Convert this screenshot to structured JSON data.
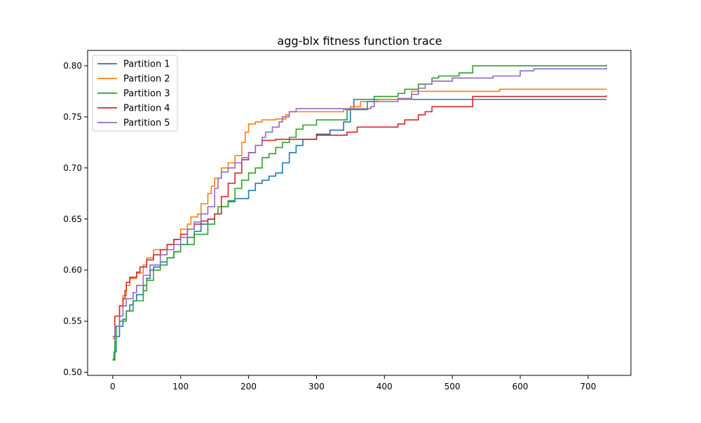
{
  "chart_data": {
    "type": "line",
    "title": "agg-blx fitness function trace",
    "xlabel": "",
    "ylabel": "",
    "xlim": [
      -37,
      763
    ],
    "ylim": [
      0.497,
      0.815
    ],
    "xticks": [
      0,
      100,
      200,
      300,
      400,
      500,
      600,
      700
    ],
    "yticks": [
      0.5,
      0.55,
      0.6,
      0.65,
      0.7,
      0.75,
      0.8
    ],
    "xtick_labels": [
      "0",
      "100",
      "200",
      "300",
      "400",
      "500",
      "600",
      "700"
    ],
    "ytick_labels": [
      "0.50",
      "0.55",
      "0.60",
      "0.65",
      "0.70",
      "0.75",
      "0.80"
    ],
    "grid": false,
    "legend_position": "top-left",
    "step": true,
    "series": [
      {
        "name": "Partition 1",
        "color": "#1f77b4",
        "points": [
          [
            0,
            0.513
          ],
          [
            2,
            0.52
          ],
          [
            5,
            0.535
          ],
          [
            10,
            0.545
          ],
          [
            15,
            0.552
          ],
          [
            20,
            0.56
          ],
          [
            25,
            0.566
          ],
          [
            30,
            0.57
          ],
          [
            35,
            0.576
          ],
          [
            45,
            0.585
          ],
          [
            50,
            0.592
          ],
          [
            55,
            0.6
          ],
          [
            60,
            0.603
          ],
          [
            70,
            0.608
          ],
          [
            80,
            0.612
          ],
          [
            90,
            0.618
          ],
          [
            100,
            0.625
          ],
          [
            110,
            0.632
          ],
          [
            120,
            0.638
          ],
          [
            130,
            0.645
          ],
          [
            140,
            0.65
          ],
          [
            150,
            0.655
          ],
          [
            160,
            0.662
          ],
          [
            170,
            0.667
          ],
          [
            180,
            0.67
          ],
          [
            200,
            0.678
          ],
          [
            210,
            0.685
          ],
          [
            220,
            0.688
          ],
          [
            230,
            0.692
          ],
          [
            240,
            0.695
          ],
          [
            250,
            0.705
          ],
          [
            260,
            0.715
          ],
          [
            270,
            0.722
          ],
          [
            280,
            0.728
          ],
          [
            300,
            0.733
          ],
          [
            320,
            0.737
          ],
          [
            340,
            0.745
          ],
          [
            350,
            0.758
          ],
          [
            355,
            0.767
          ],
          [
            400,
            0.767
          ],
          [
            727,
            0.767
          ]
        ]
      },
      {
        "name": "Partition 2",
        "color": "#ff7f0e",
        "points": [
          [
            0,
            0.515
          ],
          [
            3,
            0.545
          ],
          [
            10,
            0.565
          ],
          [
            15,
            0.575
          ],
          [
            20,
            0.585
          ],
          [
            25,
            0.592
          ],
          [
            35,
            0.597
          ],
          [
            45,
            0.605
          ],
          [
            50,
            0.612
          ],
          [
            60,
            0.62
          ],
          [
            80,
            0.625
          ],
          [
            90,
            0.63
          ],
          [
            100,
            0.64
          ],
          [
            110,
            0.645
          ],
          [
            115,
            0.652
          ],
          [
            125,
            0.655
          ],
          [
            130,
            0.665
          ],
          [
            140,
            0.675
          ],
          [
            145,
            0.682
          ],
          [
            150,
            0.69
          ],
          [
            160,
            0.7
          ],
          [
            170,
            0.705
          ],
          [
            180,
            0.712
          ],
          [
            190,
            0.725
          ],
          [
            195,
            0.735
          ],
          [
            200,
            0.743
          ],
          [
            210,
            0.745
          ],
          [
            220,
            0.747
          ],
          [
            240,
            0.748
          ],
          [
            255,
            0.752
          ],
          [
            260,
            0.755
          ],
          [
            340,
            0.757
          ],
          [
            350,
            0.76
          ],
          [
            365,
            0.765
          ],
          [
            390,
            0.767
          ],
          [
            440,
            0.775
          ],
          [
            570,
            0.777
          ],
          [
            727,
            0.777
          ]
        ]
      },
      {
        "name": "Partition 3",
        "color": "#2ca02c",
        "points": [
          [
            0,
            0.512
          ],
          [
            3,
            0.53
          ],
          [
            5,
            0.545
          ],
          [
            10,
            0.55
          ],
          [
            20,
            0.56
          ],
          [
            30,
            0.57
          ],
          [
            45,
            0.58
          ],
          [
            50,
            0.59
          ],
          [
            60,
            0.6
          ],
          [
            70,
            0.605
          ],
          [
            80,
            0.612
          ],
          [
            90,
            0.618
          ],
          [
            100,
            0.625
          ],
          [
            120,
            0.635
          ],
          [
            140,
            0.645
          ],
          [
            150,
            0.655
          ],
          [
            155,
            0.662
          ],
          [
            170,
            0.668
          ],
          [
            180,
            0.68
          ],
          [
            190,
            0.688
          ],
          [
            200,
            0.695
          ],
          [
            210,
            0.7
          ],
          [
            220,
            0.71
          ],
          [
            230,
            0.714
          ],
          [
            240,
            0.72
          ],
          [
            250,
            0.725
          ],
          [
            260,
            0.73
          ],
          [
            270,
            0.738
          ],
          [
            280,
            0.742
          ],
          [
            300,
            0.747
          ],
          [
            340,
            0.747
          ],
          [
            345,
            0.757
          ],
          [
            360,
            0.757
          ],
          [
            375,
            0.765
          ],
          [
            385,
            0.77
          ],
          [
            420,
            0.773
          ],
          [
            430,
            0.777
          ],
          [
            450,
            0.782
          ],
          [
            470,
            0.788
          ],
          [
            480,
            0.79
          ],
          [
            510,
            0.793
          ],
          [
            530,
            0.8
          ],
          [
            600,
            0.8
          ],
          [
            727,
            0.801
          ]
        ]
      },
      {
        "name": "Partition 4",
        "color": "#d62728",
        "points": [
          [
            0,
            0.535
          ],
          [
            3,
            0.555
          ],
          [
            10,
            0.565
          ],
          [
            15,
            0.572
          ],
          [
            18,
            0.58
          ],
          [
            20,
            0.588
          ],
          [
            25,
            0.593
          ],
          [
            35,
            0.598
          ],
          [
            40,
            0.603
          ],
          [
            50,
            0.61
          ],
          [
            60,
            0.615
          ],
          [
            70,
            0.62
          ],
          [
            80,
            0.625
          ],
          [
            90,
            0.63
          ],
          [
            100,
            0.635
          ],
          [
            110,
            0.64
          ],
          [
            120,
            0.645
          ],
          [
            130,
            0.648
          ],
          [
            140,
            0.65
          ],
          [
            150,
            0.655
          ],
          [
            160,
            0.672
          ],
          [
            170,
            0.685
          ],
          [
            180,
            0.695
          ],
          [
            190,
            0.708
          ],
          [
            200,
            0.715
          ],
          [
            210,
            0.722
          ],
          [
            220,
            0.727
          ],
          [
            240,
            0.728
          ],
          [
            300,
            0.732
          ],
          [
            345,
            0.735
          ],
          [
            360,
            0.74
          ],
          [
            410,
            0.74
          ],
          [
            420,
            0.743
          ],
          [
            430,
            0.747
          ],
          [
            450,
            0.752
          ],
          [
            460,
            0.755
          ],
          [
            470,
            0.76
          ],
          [
            510,
            0.76
          ],
          [
            530,
            0.77
          ],
          [
            600,
            0.77
          ],
          [
            727,
            0.771
          ]
        ]
      },
      {
        "name": "Partition 5",
        "color": "#9467bd",
        "points": [
          [
            0,
            0.533
          ],
          [
            3,
            0.545
          ],
          [
            10,
            0.555
          ],
          [
            15,
            0.565
          ],
          [
            20,
            0.572
          ],
          [
            30,
            0.578
          ],
          [
            35,
            0.585
          ],
          [
            45,
            0.595
          ],
          [
            55,
            0.605
          ],
          [
            70,
            0.615
          ],
          [
            80,
            0.62
          ],
          [
            90,
            0.625
          ],
          [
            100,
            0.632
          ],
          [
            110,
            0.64
          ],
          [
            120,
            0.647
          ],
          [
            130,
            0.655
          ],
          [
            140,
            0.662
          ],
          [
            150,
            0.68
          ],
          [
            155,
            0.69
          ],
          [
            160,
            0.696
          ],
          [
            170,
            0.7
          ],
          [
            180,
            0.705
          ],
          [
            190,
            0.71
          ],
          [
            200,
            0.715
          ],
          [
            210,
            0.722
          ],
          [
            220,
            0.73
          ],
          [
            225,
            0.735
          ],
          [
            235,
            0.74
          ],
          [
            245,
            0.745
          ],
          [
            250,
            0.75
          ],
          [
            260,
            0.755
          ],
          [
            270,
            0.758
          ],
          [
            340,
            0.758
          ],
          [
            380,
            0.76
          ],
          [
            385,
            0.765
          ],
          [
            420,
            0.768
          ],
          [
            440,
            0.772
          ],
          [
            450,
            0.778
          ],
          [
            460,
            0.782
          ],
          [
            470,
            0.785
          ],
          [
            500,
            0.788
          ],
          [
            560,
            0.79
          ],
          [
            600,
            0.795
          ],
          [
            620,
            0.797
          ],
          [
            727,
            0.798
          ]
        ]
      }
    ]
  }
}
